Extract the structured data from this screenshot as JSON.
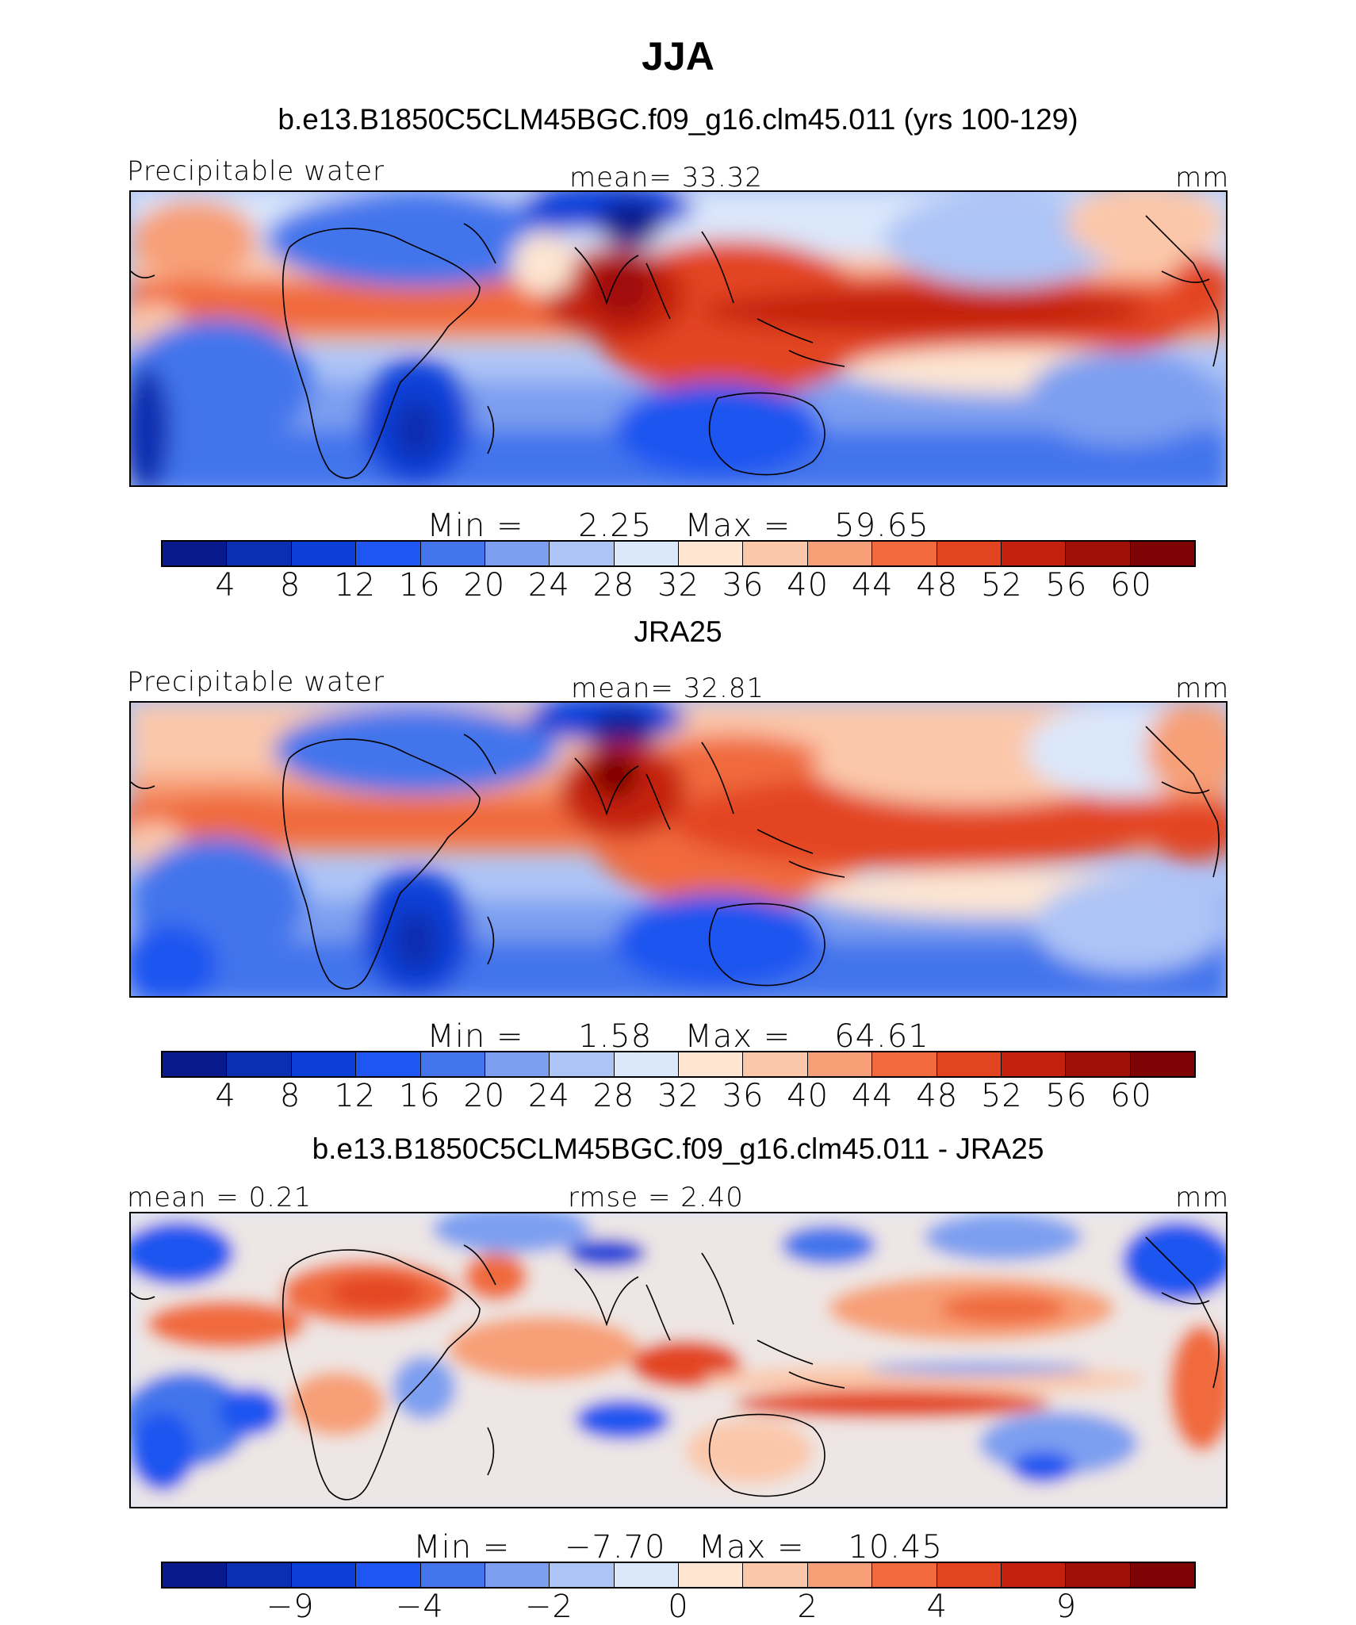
{
  "figure_title": "JJA",
  "icons": {
    "continents": "continent-outline-icon"
  },
  "palette": [
    "#081a8c",
    "#0a2fb0",
    "#0c3fd8",
    "#1f55f0",
    "#4375ec",
    "#7d9ff0",
    "#adc4f6",
    "#dbe7fb",
    "#fde5d2",
    "#fbc7aa",
    "#f79f76",
    "#f06a3e",
    "#e34420",
    "#c4220e",
    "#a01009",
    "#7d0304"
  ],
  "panels": [
    {
      "id": "model",
      "title": "b.e13.B1850C5CLM45BGC.f09_g16.clm45.011 (yrs 100-129)",
      "left_label": "Precipitable water",
      "center_label": "mean=   33.32",
      "right_label": "mm",
      "min_label": "Min  =",
      "min_value": "2.25",
      "max_label": "Max  =",
      "max_value": "59.65",
      "ticks": [
        "4",
        "8",
        "12",
        "16",
        "20",
        "24",
        "28",
        "32",
        "36",
        "40",
        "44",
        "48",
        "52",
        "56",
        "60"
      ]
    },
    {
      "id": "obs",
      "title": "JRA25",
      "left_label": "Precipitable water",
      "center_label": "mean=   32.81",
      "right_label": "mm",
      "min_label": "Min  =",
      "min_value": "1.58",
      "max_label": "Max  =",
      "max_value": "64.61",
      "ticks": [
        "4",
        "8",
        "12",
        "16",
        "20",
        "24",
        "28",
        "32",
        "36",
        "40",
        "44",
        "48",
        "52",
        "56",
        "60"
      ]
    },
    {
      "id": "diff",
      "title": "b.e13.B1850C5CLM45BGC.f09_g16.clm45.011 - JRA25",
      "left_label": "mean =    0.21",
      "center_label": "rmse =    2.40",
      "right_label": "mm",
      "min_label": "Min  =",
      "min_value": "−7.70",
      "max_label": "Max  =",
      "max_value": "10.45",
      "ticks": [
        "−9",
        "−4",
        "−2",
        "0",
        "2",
        "4",
        "9"
      ]
    }
  ]
}
